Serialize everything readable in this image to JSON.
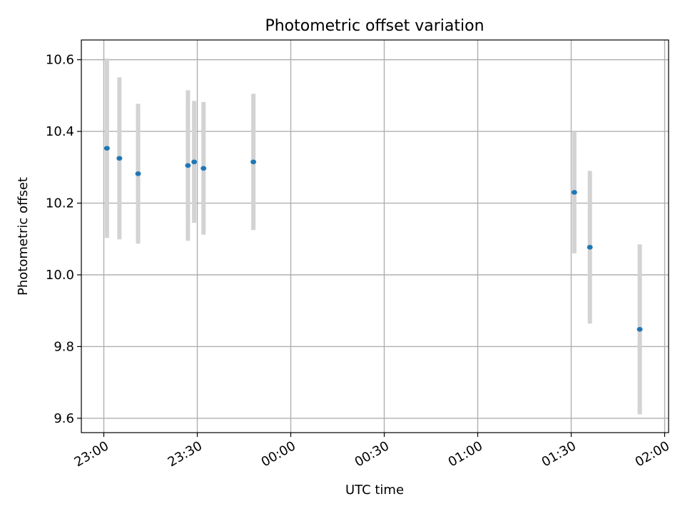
{
  "chart_data": {
    "type": "scatter",
    "title": "Photometric offset variation",
    "xlabel": "UTC time",
    "ylabel": "Photometric offset",
    "x_ticks": [
      "23:00",
      "23:30",
      "00:00",
      "00:30",
      "01:00",
      "01:30",
      "02:00"
    ],
    "y_ticks": [
      "9.6",
      "9.8",
      "10.0",
      "10.2",
      "10.4",
      "10.6"
    ],
    "ylim": [
      9.56,
      10.655
    ],
    "grid": true,
    "point_color": "#1f77b4",
    "errorbar_color": "#d3d3d3",
    "points": [
      {
        "time": "23:01",
        "y": 10.353,
        "yerr": 0.25
      },
      {
        "time": "23:05",
        "y": 10.325,
        "yerr": 0.226
      },
      {
        "time": "23:11",
        "y": 10.282,
        "yerr": 0.195
      },
      {
        "time": "23:27",
        "y": 10.305,
        "yerr": 0.21
      },
      {
        "time": "23:29",
        "y": 10.315,
        "yerr": 0.17
      },
      {
        "time": "23:32",
        "y": 10.297,
        "yerr": 0.185
      },
      {
        "time": "23:48",
        "y": 10.315,
        "yerr": 0.19
      },
      {
        "time": "01:31",
        "y": 10.23,
        "yerr": 0.17
      },
      {
        "time": "01:36",
        "y": 10.077,
        "yerr": 0.213
      },
      {
        "time": "01:52",
        "y": 9.848,
        "yerr": 0.237
      }
    ]
  }
}
